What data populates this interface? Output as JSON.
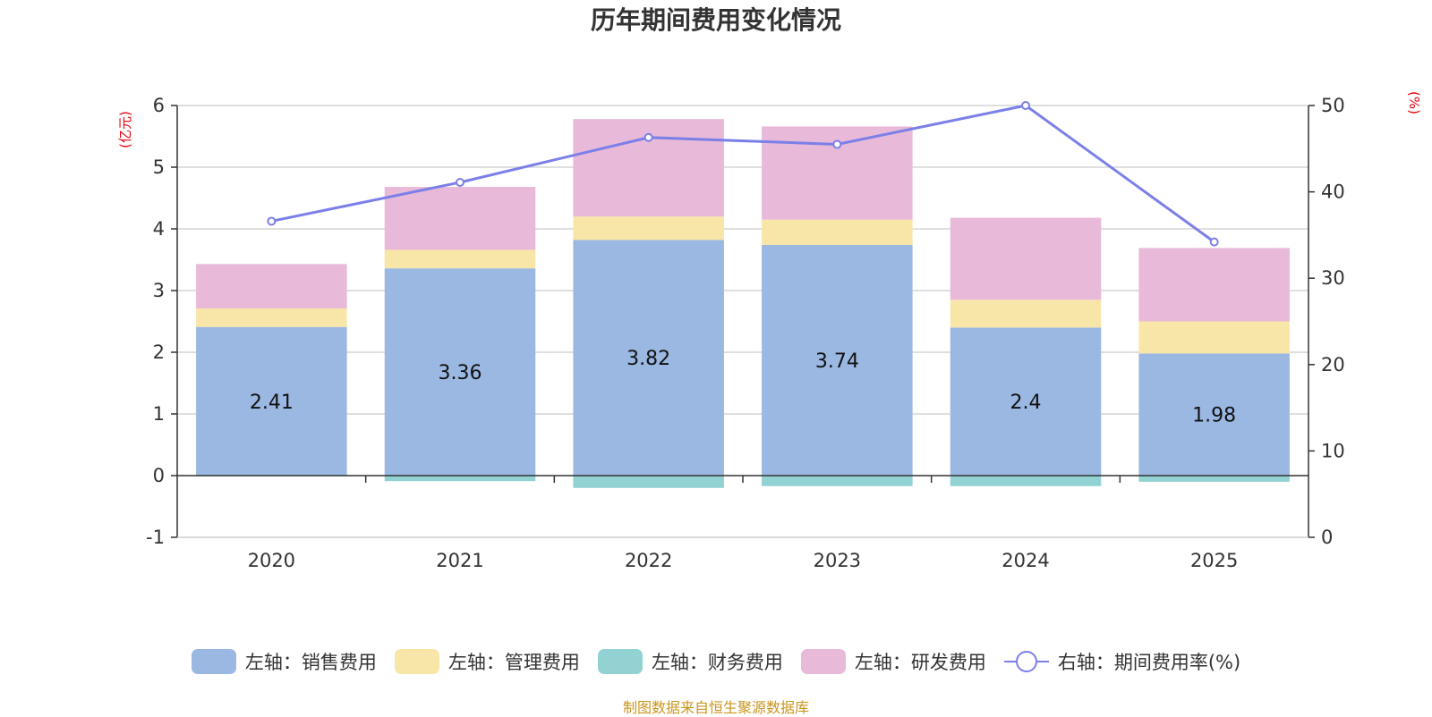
{
  "chart_data": {
    "type": "bar",
    "title": "历年期间费用变化情况",
    "categories": [
      "2020",
      "2021",
      "2022",
      "2023",
      "2024",
      "2025"
    ],
    "left_axis": {
      "unit": "(亿元)",
      "ylim": [
        -1,
        6
      ],
      "ticks": [
        -1,
        0,
        1,
        2,
        3,
        4,
        5,
        6
      ]
    },
    "right_axis": {
      "unit": "(%)",
      "ylim": [
        0,
        50
      ],
      "ticks": [
        0,
        10,
        20,
        30,
        40,
        50
      ]
    },
    "series": [
      {
        "name": "左轴：销售费用",
        "type": "bar",
        "axis": "left",
        "color": "#9bb8e2",
        "values": [
          2.41,
          3.36,
          3.82,
          3.74,
          2.4,
          1.98
        ],
        "labels": [
          "2.41",
          "3.36",
          "3.82",
          "3.74",
          "2.4",
          "1.98"
        ]
      },
      {
        "name": "左轴：管理费用",
        "type": "bar",
        "axis": "left",
        "color": "#f8e6a8",
        "values": [
          0.3,
          0.3,
          0.38,
          0.41,
          0.45,
          0.52
        ]
      },
      {
        "name": "左轴：财务费用",
        "type": "bar",
        "axis": "left",
        "color": "#93d2d3",
        "values": [
          -0.01,
          -0.09,
          -0.2,
          -0.17,
          -0.17,
          -0.1
        ]
      },
      {
        "name": "左轴：研发费用",
        "type": "bar",
        "axis": "left",
        "color": "#e8b9d9",
        "values": [
          0.72,
          1.02,
          1.58,
          1.51,
          1.33,
          1.19
        ]
      },
      {
        "name": "右轴：期间费用率(%)",
        "type": "line",
        "axis": "right",
        "color": "#7b7fe8",
        "values": [
          36.6,
          41.1,
          46.3,
          45.5,
          50.0,
          34.2
        ]
      }
    ],
    "grid": true,
    "legend_position": "bottom"
  },
  "footer": {
    "source": "制图数据来自恒生聚源数据库"
  }
}
